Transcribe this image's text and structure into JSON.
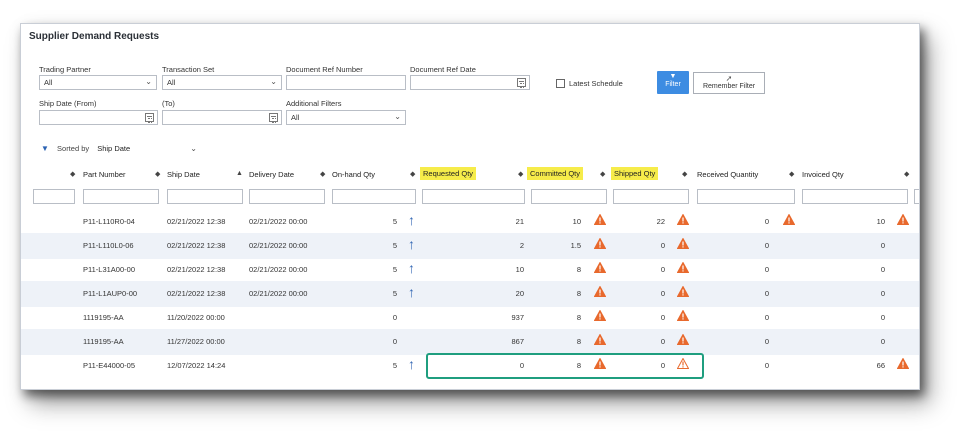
{
  "title": "Supplier Demand Requests",
  "filters": {
    "trading_partner": {
      "label": "Trading Partner",
      "value": "All"
    },
    "transaction_set": {
      "label": "Transaction Set",
      "value": "All"
    },
    "document_ref_number": {
      "label": "Document Ref Number",
      "value": ""
    },
    "document_ref_date": {
      "label": "Document Ref Date",
      "value": ""
    },
    "latest_schedule": {
      "label": "Latest Schedule",
      "checked": false
    },
    "ship_date_from": {
      "label": "Ship Date (From)",
      "value": ""
    },
    "to": {
      "label": "(To)",
      "value": ""
    },
    "additional_filters": {
      "label": "Additional Filters",
      "value": "All"
    }
  },
  "buttons": {
    "filter": "Filter",
    "remember_filter": "Remember Filter"
  },
  "sort": {
    "label": "Sorted by",
    "value": "Ship Date"
  },
  "columns": {
    "part_number": "Part Number",
    "ship_date": "Ship Date",
    "delivery_date": "Delivery Date",
    "onhand_qty": "On-hand Qty",
    "requested_qty": "Requested Qty",
    "committed_qty": "Committed Qty",
    "shipped_qty": "Shipped Qty",
    "received_quantity": "Received Quantity",
    "invoiced_qty": "Invoiced Qty"
  },
  "highlight_color": "#f6ec4a",
  "warning_color": "#e8692d",
  "highlight_box_color": "#1f9e7f",
  "rows": [
    {
      "part": "P11-L110R0-04",
      "ship": "02/21/2022 12:38",
      "delivery": "02/21/2022 00:00",
      "onhand": "5",
      "arrow": true,
      "requested": "21",
      "committed": "10",
      "shipped": "22",
      "received": "0",
      "invoiced": "10"
    },
    {
      "part": "P11-L110L0-06",
      "ship": "02/21/2022 12:38",
      "delivery": "02/21/2022 00:00",
      "onhand": "5",
      "arrow": true,
      "requested": "2",
      "committed": "1.5",
      "shipped": "0",
      "received": "0",
      "invoiced": "0"
    },
    {
      "part": "P11-L31A00-00",
      "ship": "02/21/2022 12:38",
      "delivery": "02/21/2022 00:00",
      "onhand": "5",
      "arrow": true,
      "requested": "10",
      "committed": "8",
      "shipped": "0",
      "received": "0",
      "invoiced": "0"
    },
    {
      "part": "P11-L1AUP0-00",
      "ship": "02/21/2022 12:38",
      "delivery": "02/21/2022 00:00",
      "onhand": "5",
      "arrow": true,
      "requested": "20",
      "committed": "8",
      "shipped": "0",
      "received": "0",
      "invoiced": "0"
    },
    {
      "part": "1119195-AA",
      "ship": "11/20/2022 00:00",
      "delivery": "",
      "onhand": "0",
      "arrow": false,
      "requested": "937",
      "committed": "8",
      "shipped": "0",
      "received": "0",
      "invoiced": "0"
    },
    {
      "part": "1119195-AA",
      "ship": "11/27/2022 00:00",
      "delivery": "",
      "onhand": "0",
      "arrow": false,
      "requested": "867",
      "committed": "8",
      "shipped": "0",
      "received": "0",
      "invoiced": "0"
    },
    {
      "part": "P11-E44000-05",
      "ship": "12/07/2022 14:24",
      "delivery": "",
      "onhand": "5",
      "arrow": true,
      "requested": "0",
      "committed": "8",
      "shipped": "0",
      "received": "0",
      "invoiced": "66"
    }
  ]
}
